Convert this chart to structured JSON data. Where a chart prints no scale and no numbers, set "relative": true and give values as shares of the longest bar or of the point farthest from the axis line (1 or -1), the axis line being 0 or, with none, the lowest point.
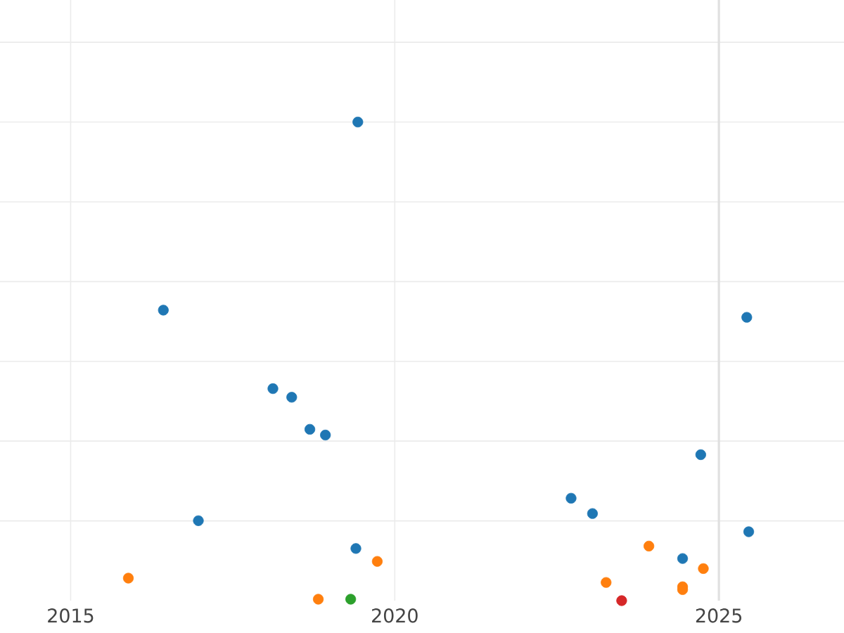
{
  "chart_data": {
    "type": "scatter",
    "relative": true,
    "grid": true,
    "marker": "circle",
    "tick_labels": "x",
    "xlim": [
      2013.91,
      2026.93
    ],
    "xticks": [
      2015,
      2020,
      2025
    ],
    "ref_lines": [
      {
        "axis": "x",
        "value": 2025,
        "color": "#e0e0e0"
      }
    ],
    "series": [
      {
        "color": "#1f77b4",
        "x": [
          2019.43,
          2016.43,
          2025.43,
          2018.12,
          2018.41,
          2018.69,
          2018.93,
          2024.72,
          2022.72,
          2023.05,
          2016.97,
          2025.46,
          2019.4,
          2024.44
        ],
        "values": [
          1.0,
          0.607,
          0.592,
          0.443,
          0.425,
          0.358,
          0.346,
          0.305,
          0.214,
          0.182,
          0.167,
          0.144,
          0.109,
          0.088
        ]
      },
      {
        "color": "#ff7f0e",
        "x": [
          2015.89,
          2019.73,
          2018.82,
          2023.26,
          2023.92,
          2024.44,
          2024.44,
          2024.76
        ],
        "values": [
          0.047,
          0.082,
          0.003,
          0.038,
          0.114,
          0.029,
          0.023,
          0.067
        ]
      },
      {
        "color": "#2ca02c",
        "x": [
          2019.32
        ],
        "values": [
          0.003
        ]
      },
      {
        "color": "#d62728",
        "x": [
          2023.5
        ],
        "values": [
          0.0
        ]
      }
    ]
  }
}
